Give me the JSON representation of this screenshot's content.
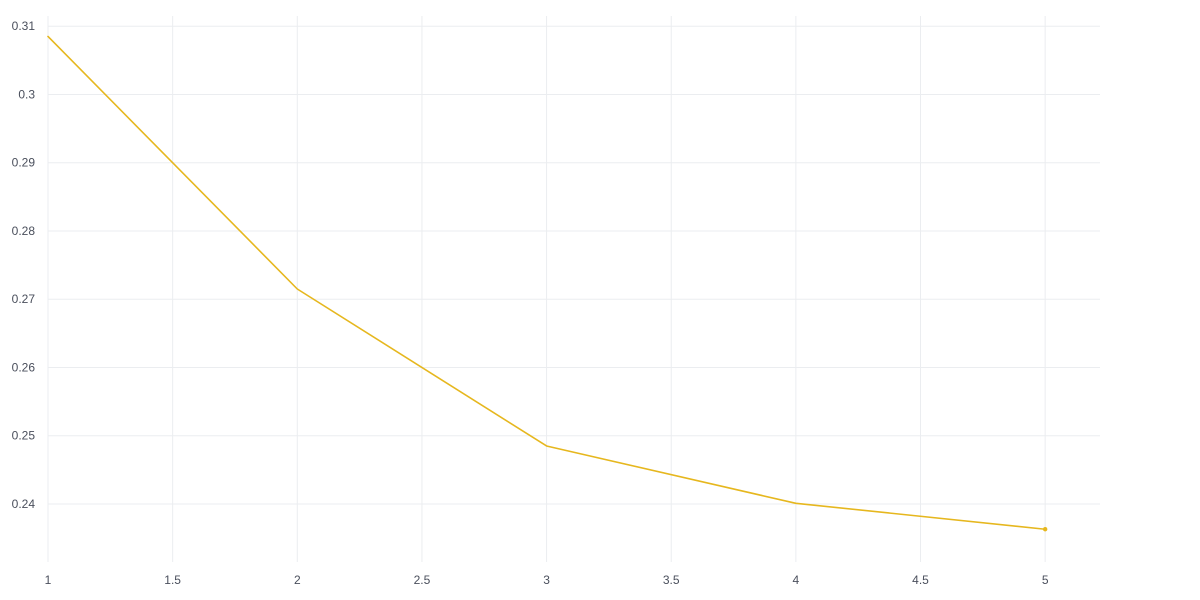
{
  "chart_data": {
    "type": "line",
    "title": "",
    "xlabel": "",
    "ylabel": "",
    "x": [
      1,
      2,
      3,
      4,
      5
    ],
    "series": [
      {
        "name": "",
        "values": [
          0.3085,
          0.2715,
          0.2485,
          0.2401,
          0.2363
        ],
        "color": "#e6b71e"
      }
    ],
    "xlim": [
      1,
      5.22
    ],
    "ylim": [
      0.2315,
      0.3115
    ],
    "x_ticks": [
      1,
      1.5,
      2,
      2.5,
      3,
      3.5,
      4,
      4.5,
      5
    ],
    "x_tick_labels": [
      "1",
      "1.5",
      "2",
      "2.5",
      "3",
      "3.5",
      "4",
      "4.5",
      "5"
    ],
    "y_ticks": [
      0.24,
      0.25,
      0.26,
      0.27,
      0.28,
      0.29,
      0.3,
      0.31
    ],
    "y_tick_labels": [
      "0.24",
      "0.25",
      "0.26",
      "0.27",
      "0.28",
      "0.29",
      "0.3",
      "0.31"
    ],
    "grid": true,
    "legend": "none",
    "colors": {
      "grid": "#ebedf0",
      "tick_text": "#4a4f5c",
      "background": "#ffffff"
    }
  }
}
